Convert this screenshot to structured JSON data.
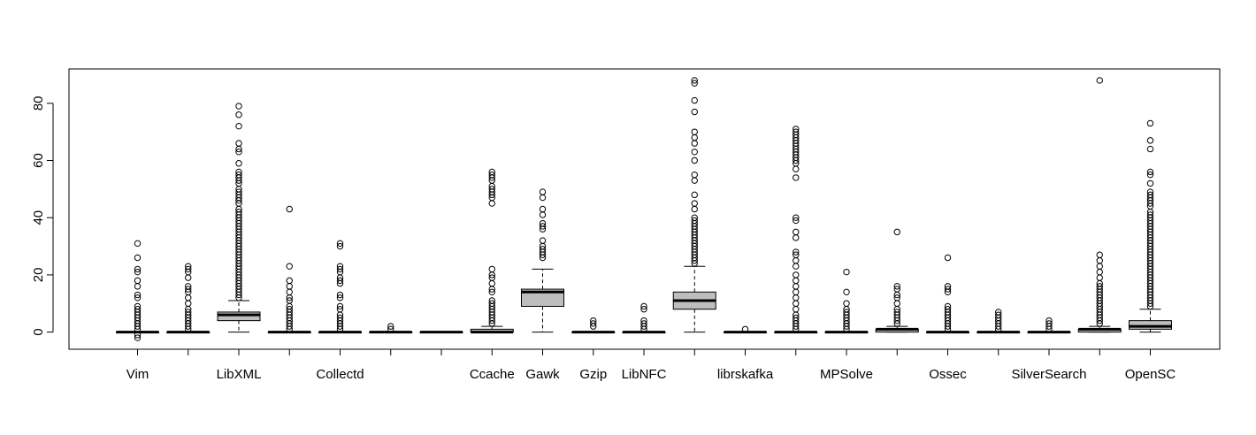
{
  "chart_data": {
    "type": "boxplot",
    "title": "",
    "xlabel": "",
    "ylabel": "",
    "ylim": [
      -6,
      92
    ],
    "yticks": [
      0,
      20,
      40,
      60,
      80
    ],
    "colors": {
      "box_fill": "#bebebe",
      "stroke": "#000000",
      "background": "#ffffff"
    },
    "tick_label_every": 2,
    "categories": [
      "Vim",
      "",
      "LibXML",
      "",
      "Collectd",
      "",
      "",
      "Ccache",
      "Gawk",
      "Gzip",
      "LibNFC",
      "",
      "librskafka",
      "",
      "MPSolve",
      "",
      "Ossec",
      "",
      "SilverSearch",
      "",
      "OpenSC"
    ],
    "series": [
      {
        "name": "Vim",
        "min": 0,
        "q1": 0,
        "median": 0,
        "q3": 0,
        "max": 0,
        "outliers": [
          31,
          26,
          22,
          21,
          18,
          16,
          13,
          12,
          9,
          8,
          7,
          6,
          5,
          4,
          3,
          2,
          1,
          -1,
          -2
        ]
      },
      {
        "name": "",
        "min": 0,
        "q1": 0,
        "median": 0,
        "q3": 0,
        "max": 0,
        "outliers": [
          23,
          22,
          21,
          19,
          16,
          15,
          14,
          12,
          10,
          8,
          7,
          6,
          5,
          4,
          3,
          2,
          1
        ]
      },
      {
        "name": "LibXML",
        "min": 0,
        "q1": 4,
        "median": 6,
        "q3": 7,
        "max": 11,
        "outliers": [
          79,
          76,
          72,
          66,
          64,
          63,
          59,
          56,
          55,
          54,
          53,
          52,
          50,
          49,
          48,
          47,
          46,
          45,
          43,
          42,
          41,
          40,
          39,
          38,
          37,
          36,
          35,
          34,
          33,
          32,
          31,
          30,
          29,
          28,
          27,
          26,
          25,
          24,
          23,
          22,
          21,
          20,
          19,
          18,
          17,
          16,
          15,
          14,
          13,
          12
        ]
      },
      {
        "name": "",
        "min": 0,
        "q1": 0,
        "median": 0,
        "q3": 0,
        "max": 0,
        "outliers": [
          43,
          23,
          18,
          16,
          14,
          12,
          11,
          9,
          8,
          7,
          6,
          5,
          4,
          3,
          2,
          1
        ]
      },
      {
        "name": "Collectd",
        "min": 0,
        "q1": 0,
        "median": 0,
        "q3": 0,
        "max": 0,
        "outliers": [
          31,
          30,
          23,
          22,
          21,
          19,
          18,
          17,
          13,
          12,
          9,
          8,
          6,
          5,
          4,
          3,
          2,
          1
        ]
      },
      {
        "name": "",
        "min": 0,
        "q1": 0,
        "median": 0,
        "q3": 0,
        "max": 0,
        "outliers": [
          2,
          1
        ]
      },
      {
        "name": "",
        "min": 0,
        "q1": 0,
        "median": 0,
        "q3": 0,
        "max": 0,
        "outliers": []
      },
      {
        "name": "Ccache",
        "min": 0,
        "q1": 0,
        "median": 0,
        "q3": 1,
        "max": 2,
        "outliers": [
          56,
          55,
          54,
          53,
          51,
          50,
          49,
          48,
          47,
          45,
          22,
          20,
          19,
          17,
          15,
          14,
          11,
          10,
          9,
          8,
          7,
          6,
          5,
          4,
          3
        ]
      },
      {
        "name": "Gawk",
        "min": 0,
        "q1": 9,
        "median": 14,
        "q3": 15,
        "max": 22,
        "outliers": [
          49,
          47,
          43,
          41,
          38,
          37,
          36,
          32,
          30,
          29,
          28,
          27,
          26
        ]
      },
      {
        "name": "Gzip",
        "min": 0,
        "q1": 0,
        "median": 0,
        "q3": 0,
        "max": 0,
        "outliers": [
          4,
          3,
          2
        ]
      },
      {
        "name": "LibNFC",
        "min": 0,
        "q1": 0,
        "median": 0,
        "q3": 0,
        "max": 0,
        "outliers": [
          9,
          8,
          4,
          3,
          2,
          1
        ]
      },
      {
        "name": "",
        "min": 0,
        "q1": 8,
        "median": 11,
        "q3": 14,
        "max": 23,
        "outliers": [
          88,
          87,
          81,
          77,
          70,
          68,
          66,
          63,
          60,
          55,
          53,
          48,
          45,
          43,
          40,
          39,
          38,
          37,
          36,
          35,
          34,
          33,
          32,
          31,
          30,
          29,
          28,
          27,
          26,
          25,
          24
        ]
      },
      {
        "name": "librskafka",
        "min": 0,
        "q1": 0,
        "median": 0,
        "q3": 0,
        "max": 0,
        "outliers": [
          1
        ]
      },
      {
        "name": "",
        "min": 0,
        "q1": 0,
        "median": 0,
        "q3": 0,
        "max": 0,
        "outliers": [
          71,
          70,
          69,
          68,
          67,
          66,
          65,
          64,
          63,
          62,
          61,
          60,
          59,
          57,
          54,
          40,
          39,
          35,
          33,
          28,
          27,
          25,
          23,
          20,
          18,
          16,
          14,
          12,
          10,
          8,
          6,
          5,
          4,
          3,
          2,
          1
        ]
      },
      {
        "name": "MPSolve",
        "min": 0,
        "q1": 0,
        "median": 0,
        "q3": 0,
        "max": 0,
        "outliers": [
          21,
          14,
          10,
          8,
          7,
          6,
          5,
          4,
          3,
          2,
          1
        ]
      },
      {
        "name": "",
        "min": 0,
        "q1": 0,
        "median": 1,
        "q3": 1,
        "max": 2,
        "outliers": [
          35,
          16,
          15,
          13,
          12,
          10,
          8,
          7,
          6,
          5,
          4,
          3
        ]
      },
      {
        "name": "Ossec",
        "min": 0,
        "q1": 0,
        "median": 0,
        "q3": 0,
        "max": 0,
        "outliers": [
          26,
          16,
          15,
          14,
          9,
          8,
          7,
          6,
          5,
          4,
          3,
          2,
          1
        ]
      },
      {
        "name": "",
        "min": 0,
        "q1": 0,
        "median": 0,
        "q3": 0,
        "max": 0,
        "outliers": [
          7,
          6,
          5,
          4,
          3,
          2,
          1
        ]
      },
      {
        "name": "SilverSearch",
        "min": 0,
        "q1": 0,
        "median": 0,
        "q3": 0,
        "max": 0,
        "outliers": [
          4,
          3,
          2,
          1
        ]
      },
      {
        "name": "",
        "min": 0,
        "q1": 0,
        "median": 1,
        "q3": 1,
        "max": 2,
        "outliers": [
          88,
          27,
          25,
          23,
          21,
          19,
          17,
          16,
          15,
          14,
          13,
          12,
          11,
          10,
          9,
          8,
          7,
          6,
          5,
          4,
          3
        ]
      },
      {
        "name": "OpenSC",
        "min": 0,
        "q1": 1,
        "median": 2,
        "q3": 4,
        "max": 8,
        "outliers": [
          73,
          67,
          64,
          56,
          55,
          52,
          49,
          48,
          47,
          46,
          45,
          44,
          42,
          41,
          40,
          39,
          38,
          37,
          36,
          35,
          34,
          33,
          32,
          31,
          30,
          29,
          28,
          27,
          26,
          25,
          24,
          23,
          22,
          21,
          20,
          19,
          18,
          17,
          16,
          15,
          14,
          13,
          12,
          11,
          10,
          9
        ]
      }
    ]
  }
}
